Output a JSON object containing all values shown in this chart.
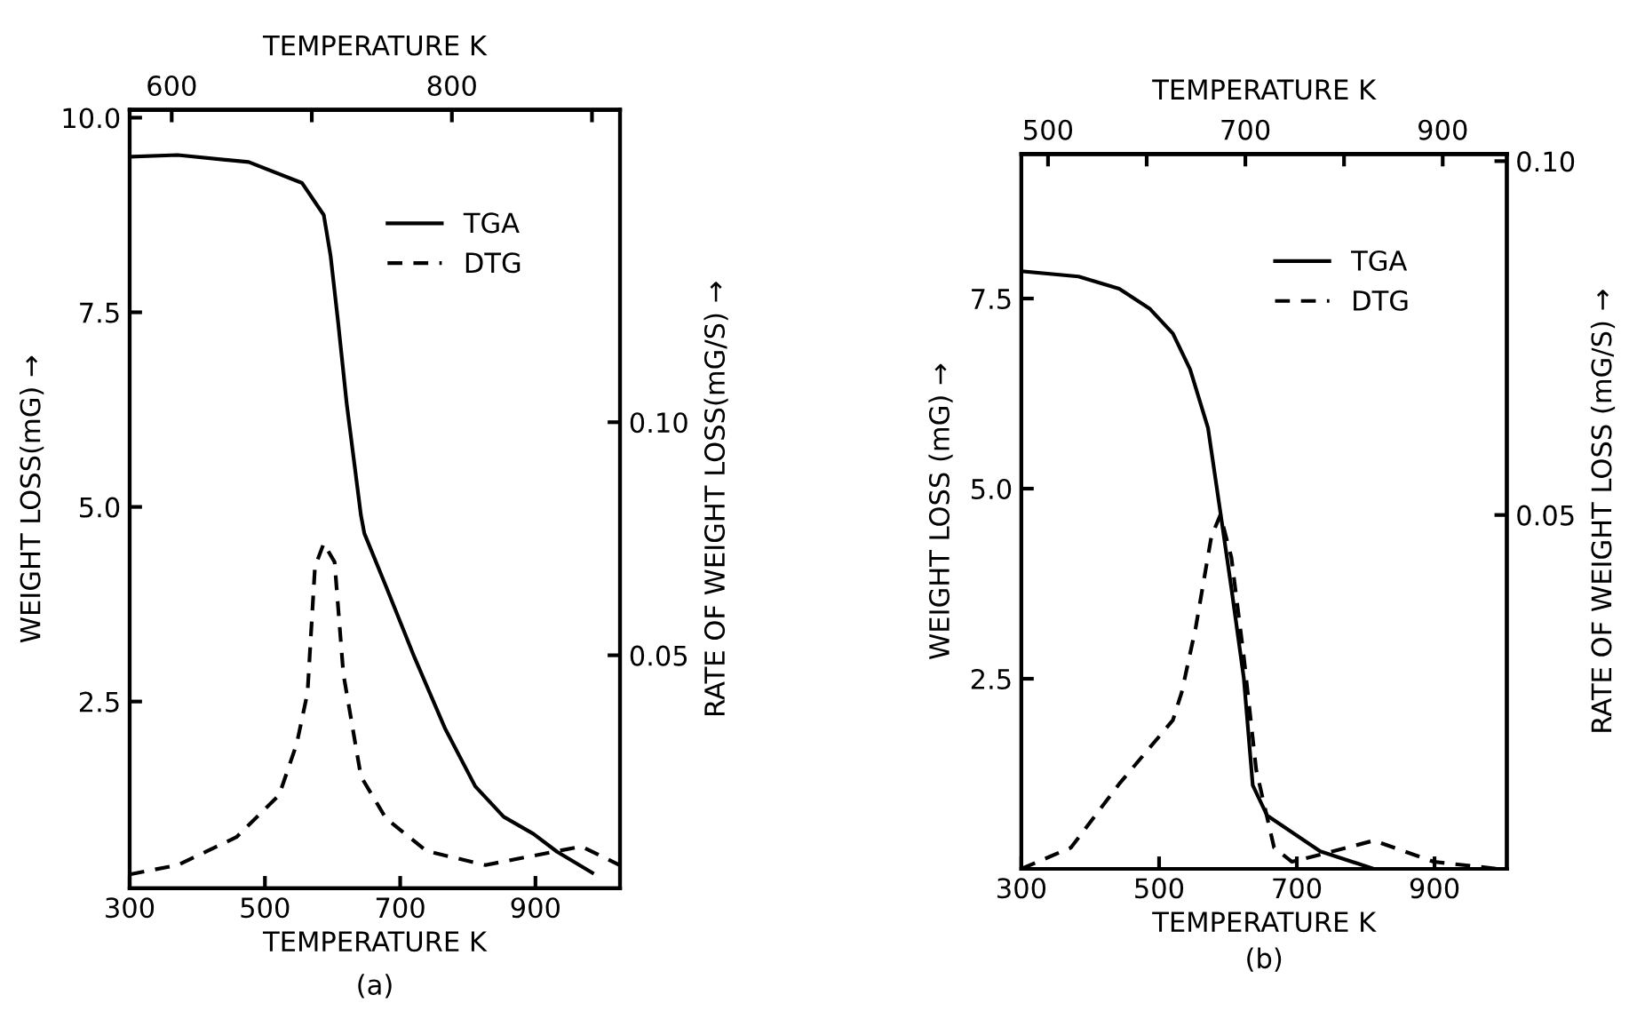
{
  "chart_data": [
    {
      "type": "line",
      "xlabel": "TEMPERATURE K",
      "x2label": "TEMPERATURE K",
      "ylabel": "WEIGHT LOSS(mG) →",
      "y2label": "RATE OF WEIGHT LOSS(mG/S) →",
      "xlim": [
        300,
        1025
      ],
      "xticks": [
        300,
        500,
        700,
        900
      ],
      "x2lim": [
        570,
        920
      ],
      "x2ticks": [
        600,
        {
          "value": 700,
          "label": null
        },
        800,
        {
          "value": 900,
          "label": null
        }
      ],
      "ylim": [
        0.1,
        10.1
      ],
      "yticks": [
        {
          "value": 2.5,
          "label": "2.5"
        },
        {
          "value": 5,
          "label": "5.0"
        },
        {
          "value": 7.5,
          "label": "7.5"
        },
        {
          "value": 10,
          "label": "10.0"
        }
      ],
      "y2lim": [
        0,
        0.167
      ],
      "y2ticks": [
        0.05,
        {
          "value": 0.1,
          "label": "0.10"
        }
      ],
      "legend": "top right",
      "series": [
        {
          "name": "TGA",
          "color": "#000000",
          "line_style": "solid",
          "x": [
            303,
            371,
            476,
            555,
            587,
            597,
            608,
            621,
            642,
            647,
            679,
            721,
            766,
            811,
            853,
            897,
            932,
            984
          ],
          "values": [
            9.5,
            9.52,
            9.43,
            9.16,
            8.75,
            8.23,
            7.39,
            6.32,
            4.89,
            4.66,
            3.98,
            3.07,
            2.16,
            1.41,
            1.02,
            0.8,
            0.57,
            0.3
          ]
        },
        {
          "name": "DTG",
          "color": "#000000",
          "line_style": "dashed",
          "axis": "y2",
          "x": [
            300,
            371,
            458,
            521,
            547,
            563,
            574,
            587,
            603,
            616,
            642,
            679,
            739,
            826,
            897,
            968,
            1024
          ],
          "values": [
            0.003,
            0.005,
            0.011,
            0.02,
            0.031,
            0.042,
            0.069,
            0.074,
            0.07,
            0.046,
            0.024,
            0.015,
            0.008,
            0.005,
            0.007,
            0.009,
            0.005
          ]
        }
      ],
      "annotations": [
        "(a)"
      ]
    },
    {
      "type": "line",
      "xlabel": "TEMPERATURE K",
      "x2label": "TEMPERATURE K",
      "ylabel": "WEIGHT LOSS (mG) →",
      "y2label": "RATE OF WEIGHT LOSS (mG/S) →",
      "xlim": [
        300,
        1005
      ],
      "xticks": [
        300,
        500,
        700,
        900
      ],
      "x2lim": [
        473,
        965
      ],
      "x2ticks": [
        500,
        {
          "value": 600,
          "label": null
        },
        700,
        {
          "value": 800,
          "label": null
        },
        900
      ],
      "ylim": [
        0,
        9.4
      ],
      "yticks": [
        {
          "value": 2.5,
          "label": "2.5"
        },
        {
          "value": 5,
          "label": "5.0"
        },
        {
          "value": 7.5,
          "label": "7.5"
        }
      ],
      "y2lim": [
        0,
        0.101
      ],
      "y2ticks": [
        0.05,
        {
          "value": 0.1,
          "label": "0.10"
        }
      ],
      "legend": "top right",
      "series": [
        {
          "name": "TGA",
          "color": "#000000",
          "line_style": "solid",
          "x": [
            300,
            383,
            442,
            486,
            520,
            545,
            571,
            589,
            605,
            623,
            636,
            657,
            734,
            812
          ],
          "values": [
            7.86,
            7.79,
            7.63,
            7.37,
            7.04,
            6.57,
            5.8,
            4.69,
            3.69,
            2.51,
            1.1,
            0.7,
            0.23,
            0
          ]
        },
        {
          "name": "DTG",
          "color": "#000000",
          "line_style": "dashed",
          "axis": "y2",
          "x": [
            300,
            372,
            442,
            520,
            533,
            553,
            576,
            589,
            605,
            623,
            641,
            667,
            693,
            734,
            812,
            899,
            992
          ],
          "values": [
            0,
            0.003,
            0.012,
            0.021,
            0.025,
            0.034,
            0.047,
            0.05,
            0.044,
            0.03,
            0.014,
            0.003,
            0.001,
            0.002,
            0.004,
            0.001,
            0
          ]
        }
      ],
      "annotations": [
        "(b)"
      ]
    }
  ]
}
